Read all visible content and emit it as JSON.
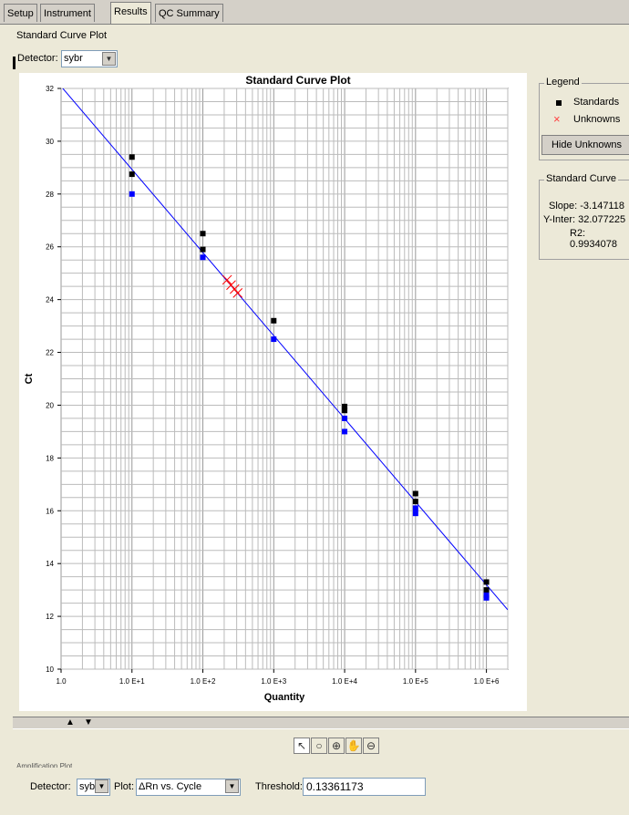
{
  "tabs": [
    "Setup",
    "Instrument",
    "Results",
    "QC Summary"
  ],
  "section_title": "Standard Curve Plot",
  "detector_label": "Detector:",
  "detector_value": "sybr",
  "legend": {
    "title": "Legend",
    "standards": "Standards",
    "unknowns": "Unknowns",
    "hide_button": "Hide Unknowns"
  },
  "standard_curve": {
    "title": "Standard Curve",
    "slope": "Slope: -3.147118",
    "y_inter": "Y-Inter: 32.077225",
    "r2": "R2: 0.9934078"
  },
  "bottom": {
    "section_title": "Amplification Plot",
    "detector_label": "Detector:",
    "detector_value": "sybr",
    "plot_label": "Plot:",
    "plot_value": "ΔRn vs. Cycle",
    "threshold_label": "Threshold:",
    "threshold_value": "0.13361173"
  },
  "colors": {
    "standards": "#000000",
    "standards_alt": "#0000ff",
    "unknowns": "#ff0000",
    "fit_line": "#0000ff"
  },
  "chart_data": {
    "type": "scatter",
    "title": "Standard Curve Plot",
    "xlabel": "Quantity",
    "ylabel": "Ct",
    "x_scale": "log",
    "xlim": [
      1,
      2000000
    ],
    "ylim": [
      10,
      32
    ],
    "grid": true,
    "xticks": [
      {
        "value": 1,
        "label": "1.0"
      },
      {
        "value": 10,
        "label": "1.0 E+1"
      },
      {
        "value": 100,
        "label": "1.0 E+2"
      },
      {
        "value": 1000,
        "label": "1.0 E+3"
      },
      {
        "value": 10000,
        "label": "1.0 E+4"
      },
      {
        "value": 100000,
        "label": "1.0 E+5"
      },
      {
        "value": 1000000,
        "label": "1.0 E+6"
      }
    ],
    "yticks": [
      10,
      12,
      14,
      16,
      18,
      20,
      22,
      24,
      26,
      28,
      30,
      32
    ],
    "fit": {
      "slope": -3.147118,
      "intercept": 32.077225
    },
    "series": [
      {
        "name": "Standards",
        "color": "#000000",
        "marker": "square",
        "points": [
          [
            10,
            29.4
          ],
          [
            10,
            28.75
          ],
          [
            100,
            26.5
          ],
          [
            100,
            25.9
          ],
          [
            1000,
            23.2
          ],
          [
            10000,
            19.95
          ],
          [
            10000,
            19.8
          ],
          [
            100000,
            16.65
          ],
          [
            100000,
            16.35
          ],
          [
            1000000,
            13.3
          ],
          [
            1000000,
            13.0
          ]
        ]
      },
      {
        "name": "Standards",
        "color": "#0000ff",
        "marker": "square",
        "points": [
          [
            10,
            28.0
          ],
          [
            100,
            25.6
          ],
          [
            1000,
            22.5
          ],
          [
            10000,
            19.5
          ],
          [
            10000,
            19.0
          ],
          [
            100000,
            16.1
          ],
          [
            100000,
            15.9
          ],
          [
            1000000,
            12.8
          ],
          [
            1000000,
            12.7
          ]
        ]
      },
      {
        "name": "Unknowns",
        "color": "#ff0000",
        "marker": "x",
        "points": [
          [
            220,
            24.75
          ],
          [
            250,
            24.55
          ],
          [
            280,
            24.4
          ],
          [
            310,
            24.25
          ]
        ]
      }
    ]
  }
}
